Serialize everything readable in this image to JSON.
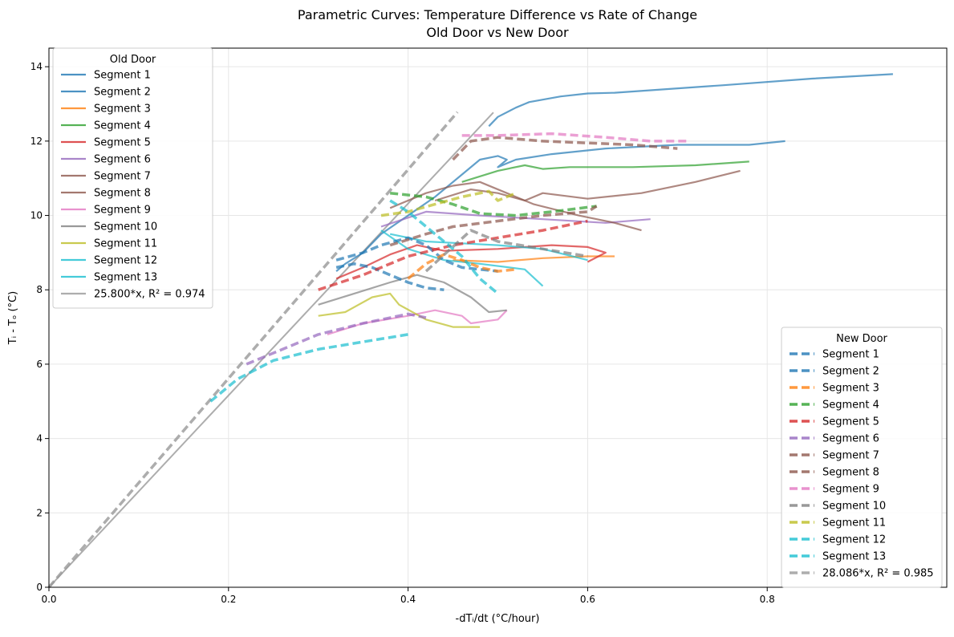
{
  "chart_data": {
    "type": "line",
    "title_line1": "Parametric Curves: Temperature Difference vs Rate of Change",
    "title_line2": "Old Door vs New Door",
    "xlabel": "-dTᵢ/dt (°C/hour)",
    "ylabel": "Tᵢ - Tₒ (°C)",
    "xlim": [
      0,
      1.0
    ],
    "ylim": [
      0,
      14.5
    ],
    "x_ticks": [
      "0.0",
      "0.2",
      "0.4",
      "0.6",
      "0.8"
    ],
    "y_ticks": [
      "0",
      "2",
      "4",
      "6",
      "8",
      "10",
      "12",
      "14"
    ],
    "grid": true,
    "legends": [
      {
        "title": "Old Door",
        "placement": "top-left",
        "line_style": "solid"
      },
      {
        "title": "New Door",
        "placement": "bottom-right",
        "line_style": "dashed"
      }
    ],
    "colors": [
      "#1f77b4",
      "#1f77b4",
      "#ff7f0e",
      "#2ca02c",
      "#d62728",
      "#9467bd",
      "#8c564b",
      "#8c564b",
      "#e377c2",
      "#7f7f7f",
      "#bcbd22",
      "#17becf",
      "#17becf"
    ],
    "fit_color": "#999999",
    "old_door": {
      "series": [
        {
          "name": "Segment 1",
          "points": [
            [
              0.49,
              12.4
            ],
            [
              0.5,
              12.65
            ],
            [
              0.52,
              12.9
            ],
            [
              0.53,
              13.0
            ],
            [
              0.535,
              13.05
            ],
            [
              0.57,
              13.2
            ],
            [
              0.6,
              13.28
            ],
            [
              0.63,
              13.3
            ],
            [
              0.75,
              13.5
            ],
            [
              0.85,
              13.68
            ],
            [
              0.94,
              13.8
            ]
          ]
        },
        {
          "name": "Segment 2",
          "points": [
            [
              0.32,
              8.5
            ],
            [
              0.33,
              8.7
            ],
            [
              0.35,
              9.0
            ],
            [
              0.37,
              9.5
            ],
            [
              0.4,
              10.0
            ],
            [
              0.43,
              10.5
            ],
            [
              0.46,
              11.1
            ],
            [
              0.48,
              11.5
            ],
            [
              0.5,
              11.6
            ],
            [
              0.51,
              11.5
            ],
            [
              0.5,
              11.3
            ],
            [
              0.52,
              11.5
            ],
            [
              0.56,
              11.65
            ],
            [
              0.62,
              11.8
            ],
            [
              0.7,
              11.9
            ],
            [
              0.78,
              11.9
            ],
            [
              0.82,
              12.0
            ]
          ]
        },
        {
          "name": "Segment 3",
          "points": [
            [
              0.45,
              8.8
            ],
            [
              0.5,
              8.75
            ],
            [
              0.55,
              8.85
            ],
            [
              0.6,
              8.9
            ],
            [
              0.63,
              8.9
            ]
          ]
        },
        {
          "name": "Segment 4",
          "points": [
            [
              0.46,
              10.9
            ],
            [
              0.5,
              11.2
            ],
            [
              0.53,
              11.35
            ],
            [
              0.55,
              11.25
            ],
            [
              0.58,
              11.3
            ],
            [
              0.65,
              11.3
            ],
            [
              0.72,
              11.35
            ],
            [
              0.78,
              11.45
            ]
          ]
        },
        {
          "name": "Segment 5",
          "points": [
            [
              0.32,
              8.3
            ],
            [
              0.35,
              8.6
            ],
            [
              0.38,
              8.95
            ],
            [
              0.41,
              9.2
            ],
            [
              0.44,
              9.05
            ],
            [
              0.5,
              9.1
            ],
            [
              0.56,
              9.2
            ],
            [
              0.6,
              9.15
            ],
            [
              0.62,
              9.0
            ],
            [
              0.6,
              8.75
            ]
          ]
        },
        {
          "name": "Segment 6",
          "points": [
            [
              0.37,
              9.7
            ],
            [
              0.42,
              10.1
            ],
            [
              0.48,
              10.0
            ],
            [
              0.55,
              9.9
            ],
            [
              0.62,
              9.8
            ],
            [
              0.67,
              9.9
            ]
          ]
        },
        {
          "name": "Segment 7",
          "points": [
            [
              0.38,
              10.2
            ],
            [
              0.42,
              10.6
            ],
            [
              0.45,
              10.8
            ],
            [
              0.48,
              10.9
            ],
            [
              0.51,
              10.6
            ],
            [
              0.54,
              10.3
            ],
            [
              0.59,
              10.0
            ],
            [
              0.63,
              9.8
            ],
            [
              0.66,
              9.6
            ]
          ]
        },
        {
          "name": "Segment 8",
          "points": [
            [
              0.43,
              10.4
            ],
            [
              0.47,
              10.7
            ],
            [
              0.5,
              10.6
            ],
            [
              0.53,
              10.4
            ],
            [
              0.55,
              10.6
            ],
            [
              0.6,
              10.45
            ],
            [
              0.66,
              10.6
            ],
            [
              0.72,
              10.9
            ],
            [
              0.77,
              11.2
            ]
          ]
        },
        {
          "name": "Segment 9",
          "points": [
            [
              0.31,
              6.8
            ],
            [
              0.35,
              7.1
            ],
            [
              0.4,
              7.3
            ],
            [
              0.43,
              7.45
            ],
            [
              0.46,
              7.3
            ],
            [
              0.47,
              7.1
            ],
            [
              0.5,
              7.2
            ],
            [
              0.51,
              7.45
            ]
          ]
        },
        {
          "name": "Segment 10",
          "points": [
            [
              0.3,
              7.6
            ],
            [
              0.34,
              7.9
            ],
            [
              0.38,
              8.2
            ],
            [
              0.41,
              8.4
            ],
            [
              0.44,
              8.2
            ],
            [
              0.47,
              7.8
            ],
            [
              0.49,
              7.4
            ],
            [
              0.51,
              7.45
            ]
          ]
        },
        {
          "name": "Segment 11",
          "points": [
            [
              0.3,
              7.3
            ],
            [
              0.33,
              7.4
            ],
            [
              0.36,
              7.8
            ],
            [
              0.38,
              7.9
            ],
            [
              0.39,
              7.6
            ],
            [
              0.42,
              7.2
            ],
            [
              0.45,
              7.0
            ],
            [
              0.48,
              7.0
            ]
          ]
        },
        {
          "name": "Segment 12",
          "points": [
            [
              0.38,
              9.5
            ],
            [
              0.42,
              9.3
            ],
            [
              0.46,
              9.25
            ],
            [
              0.5,
              9.2
            ],
            [
              0.55,
              9.1
            ],
            [
              0.6,
              8.8
            ]
          ]
        },
        {
          "name": "Segment 13",
          "points": [
            [
              0.37,
              9.6
            ],
            [
              0.4,
              9.1
            ],
            [
              0.44,
              8.8
            ],
            [
              0.48,
              8.7
            ],
            [
              0.53,
              8.55
            ],
            [
              0.55,
              8.1
            ]
          ]
        }
      ],
      "fit": {
        "name": "25.800*x, R² = 0.974",
        "slope": 25.8,
        "x_range": [
          0,
          0.495
        ]
      }
    },
    "new_door": {
      "series": [
        {
          "name": "Segment 1",
          "points": [
            [
              0.32,
              8.6
            ],
            [
              0.34,
              8.7
            ],
            [
              0.36,
              8.6
            ],
            [
              0.38,
              8.4
            ],
            [
              0.4,
              8.2
            ],
            [
              0.42,
              8.05
            ],
            [
              0.44,
              8.0
            ]
          ]
        },
        {
          "name": "Segment 2",
          "points": [
            [
              0.32,
              8.8
            ],
            [
              0.35,
              9.0
            ],
            [
              0.37,
              9.2
            ],
            [
              0.4,
              9.4
            ],
            [
              0.42,
              9.2
            ],
            [
              0.44,
              8.8
            ],
            [
              0.46,
              8.6
            ],
            [
              0.5,
              8.5
            ]
          ]
        },
        {
          "name": "Segment 3",
          "points": [
            [
              0.4,
              8.3
            ],
            [
              0.42,
              8.7
            ],
            [
              0.44,
              8.95
            ],
            [
              0.46,
              8.8
            ],
            [
              0.48,
              8.6
            ],
            [
              0.5,
              8.5
            ],
            [
              0.52,
              8.55
            ]
          ]
        },
        {
          "name": "Segment 4",
          "points": [
            [
              0.38,
              10.6
            ],
            [
              0.42,
              10.5
            ],
            [
              0.45,
              10.3
            ],
            [
              0.48,
              10.05
            ],
            [
              0.52,
              10.0
            ],
            [
              0.56,
              10.1
            ],
            [
              0.61,
              10.25
            ]
          ]
        },
        {
          "name": "Segment 5",
          "points": [
            [
              0.3,
              8.0
            ],
            [
              0.35,
              8.4
            ],
            [
              0.4,
              8.9
            ],
            [
              0.45,
              9.2
            ],
            [
              0.5,
              9.4
            ],
            [
              0.55,
              9.6
            ],
            [
              0.6,
              9.85
            ]
          ]
        },
        {
          "name": "Segment 6",
          "points": [
            [
              0.22,
              6.0
            ],
            [
              0.25,
              6.3
            ],
            [
              0.3,
              6.8
            ],
            [
              0.35,
              7.1
            ],
            [
              0.4,
              7.35
            ],
            [
              0.42,
              7.25
            ]
          ]
        },
        {
          "name": "Segment 7",
          "points": [
            [
              0.45,
              11.5
            ],
            [
              0.47,
              12.0
            ],
            [
              0.5,
              12.1
            ],
            [
              0.55,
              12.0
            ],
            [
              0.6,
              11.95
            ],
            [
              0.65,
              11.9
            ],
            [
              0.7,
              11.8
            ]
          ]
        },
        {
          "name": "Segment 8",
          "points": [
            [
              0.38,
              9.2
            ],
            [
              0.42,
              9.5
            ],
            [
              0.45,
              9.7
            ],
            [
              0.5,
              9.85
            ],
            [
              0.55,
              10.0
            ],
            [
              0.6,
              10.1
            ],
            [
              0.61,
              10.25
            ]
          ]
        },
        {
          "name": "Segment 9",
          "points": [
            [
              0.46,
              12.15
            ],
            [
              0.5,
              12.15
            ],
            [
              0.56,
              12.2
            ],
            [
              0.62,
              12.1
            ],
            [
              0.67,
              12.0
            ],
            [
              0.71,
              12.0
            ]
          ]
        },
        {
          "name": "Segment 10",
          "points": [
            [
              0.42,
              8.5
            ],
            [
              0.47,
              9.6
            ],
            [
              0.5,
              9.3
            ],
            [
              0.55,
              9.1
            ],
            [
              0.6,
              8.9
            ]
          ]
        },
        {
          "name": "Segment 11",
          "points": [
            [
              0.37,
              10.0
            ],
            [
              0.4,
              10.1
            ],
            [
              0.43,
              10.3
            ],
            [
              0.46,
              10.5
            ],
            [
              0.49,
              10.65
            ],
            [
              0.5,
              10.4
            ],
            [
              0.52,
              10.6
            ]
          ]
        },
        {
          "name": "Segment 12",
          "points": [
            [
              0.18,
              5.0
            ],
            [
              0.21,
              5.6
            ],
            [
              0.25,
              6.1
            ],
            [
              0.3,
              6.4
            ],
            [
              0.35,
              6.6
            ],
            [
              0.4,
              6.8
            ]
          ]
        },
        {
          "name": "Segment 13",
          "points": [
            [
              0.38,
              10.4
            ],
            [
              0.4,
              10.1
            ],
            [
              0.43,
              9.5
            ],
            [
              0.46,
              8.9
            ],
            [
              0.48,
              8.3
            ],
            [
              0.5,
              7.9
            ]
          ]
        }
      ],
      "fit": {
        "name": "28.086*x, R² = 0.985",
        "slope": 28.086,
        "x_range": [
          0,
          0.455
        ]
      }
    }
  }
}
